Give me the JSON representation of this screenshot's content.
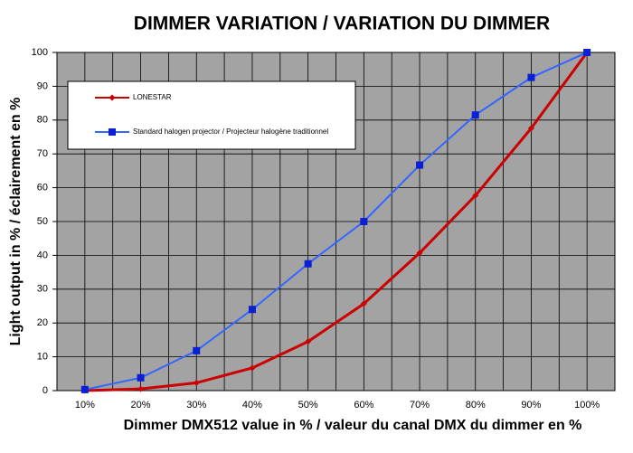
{
  "chart_data": {
    "type": "line",
    "title": "DIMMER VARIATION / VARIATION DU DIMMER",
    "x_label": "Dimmer DMX512 value in % / valeur du canal DMX du dimmer en %",
    "y_label": "Light output in % / éclairement en %",
    "categories": [
      "10%",
      "20%",
      "30%",
      "40%",
      "50%",
      "60%",
      "70%",
      "80%",
      "90%",
      "100%"
    ],
    "series": [
      {
        "name": "LONESTAR",
        "color": "#cc0000",
        "values": [
          0,
          0.5,
          2.3,
          6.7,
          14.5,
          25.7,
          40.7,
          57.7,
          77.6,
          100
        ]
      },
      {
        "name": "Standard halogen projector / Projecteur halogène traditionnel",
        "color": "#3366ff",
        "values": [
          0.3,
          3.8,
          11.8,
          24,
          37.5,
          50,
          66.7,
          81.5,
          92.6,
          100
        ]
      }
    ],
    "ylim": [
      0,
      100
    ],
    "yticks": [
      0,
      10,
      20,
      30,
      40,
      50,
      60,
      70,
      80,
      90,
      100
    ],
    "grid": true
  }
}
